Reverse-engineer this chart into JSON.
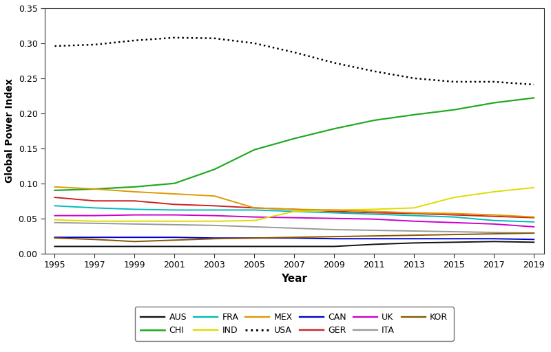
{
  "years": [
    1995,
    1997,
    1999,
    2001,
    2003,
    2005,
    2007,
    2009,
    2011,
    2013,
    2015,
    2017,
    2019
  ],
  "series": {
    "AUS": {
      "values": [
        0.01,
        0.01,
        0.01,
        0.01,
        0.01,
        0.01,
        0.01,
        0.01,
        0.013,
        0.015,
        0.016,
        0.017,
        0.016
      ],
      "color": "#111111",
      "linestyle": "solid",
      "linewidth": 1.4
    },
    "CAN": {
      "values": [
        0.023,
        0.023,
        0.023,
        0.023,
        0.022,
        0.022,
        0.022,
        0.021,
        0.021,
        0.021,
        0.021,
        0.021,
        0.02
      ],
      "color": "#0000cc",
      "linestyle": "solid",
      "linewidth": 1.4
    },
    "CHI": {
      "values": [
        0.09,
        0.092,
        0.095,
        0.1,
        0.12,
        0.148,
        0.164,
        0.178,
        0.19,
        0.198,
        0.205,
        0.215,
        0.222
      ],
      "color": "#22aa22",
      "linestyle": "solid",
      "linewidth": 1.6
    },
    "GER": {
      "values": [
        0.08,
        0.075,
        0.075,
        0.07,
        0.068,
        0.065,
        0.063,
        0.06,
        0.058,
        0.057,
        0.055,
        0.053,
        0.051
      ],
      "color": "#cc2222",
      "linestyle": "solid",
      "linewidth": 1.4
    },
    "FRA": {
      "values": [
        0.068,
        0.065,
        0.063,
        0.062,
        0.062,
        0.062,
        0.06,
        0.058,
        0.056,
        0.054,
        0.052,
        0.047,
        0.045
      ],
      "color": "#00bbbb",
      "linestyle": "solid",
      "linewidth": 1.4
    },
    "UK": {
      "values": [
        0.054,
        0.054,
        0.055,
        0.055,
        0.054,
        0.052,
        0.051,
        0.05,
        0.049,
        0.046,
        0.044,
        0.042,
        0.038
      ],
      "color": "#cc00cc",
      "linestyle": "solid",
      "linewidth": 1.4
    },
    "IND": {
      "values": [
        0.048,
        0.046,
        0.046,
        0.046,
        0.046,
        0.047,
        0.06,
        0.062,
        0.063,
        0.065,
        0.08,
        0.088,
        0.094
      ],
      "color": "#dddd00",
      "linestyle": "solid",
      "linewidth": 1.4
    },
    "ITA": {
      "values": [
        0.044,
        0.043,
        0.042,
        0.041,
        0.04,
        0.038,
        0.036,
        0.034,
        0.033,
        0.032,
        0.031,
        0.03,
        0.029
      ],
      "color": "#999999",
      "linestyle": "solid",
      "linewidth": 1.4
    },
    "MEX": {
      "values": [
        0.095,
        0.092,
        0.088,
        0.085,
        0.082,
        0.065,
        0.063,
        0.062,
        0.06,
        0.058,
        0.057,
        0.055,
        0.052
      ],
      "color": "#dd9900",
      "linestyle": "solid",
      "linewidth": 1.4
    },
    "KOR": {
      "values": [
        0.022,
        0.02,
        0.017,
        0.019,
        0.021,
        0.022,
        0.023,
        0.024,
        0.025,
        0.026,
        0.027,
        0.028,
        0.029
      ],
      "color": "#885500",
      "linestyle": "solid",
      "linewidth": 1.4
    },
    "USA": {
      "values": [
        0.296,
        0.298,
        0.304,
        0.308,
        0.307,
        0.3,
        0.287,
        0.272,
        0.26,
        0.25,
        0.245,
        0.245,
        0.241
      ],
      "color": "#000000",
      "linestyle": "dotted",
      "linewidth": 1.8
    }
  },
  "xlabel": "Year",
  "ylabel": "Global Power Index",
  "ylim": [
    0.0,
    0.35
  ],
  "yticks": [
    0.0,
    0.05,
    0.1,
    0.15,
    0.2,
    0.25,
    0.3,
    0.35
  ],
  "legend_row1": [
    "AUS",
    "CHI",
    "FRA",
    "IND",
    "MEX",
    "USA"
  ],
  "legend_row2": [
    "CAN",
    "GER",
    "UK",
    "ITA",
    "KOR"
  ],
  "bg_color": "#ffffff"
}
